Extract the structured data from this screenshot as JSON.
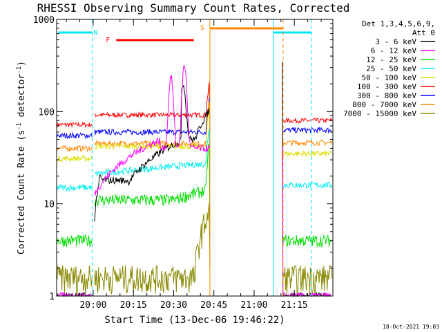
{
  "chart_data": {
    "type": "line",
    "title": "RHESSI Observing Summary Count Rates, Corrected",
    "xlabel": "Start Time (13-Dec-06 19:46:22)",
    "ylabel_main": "Corrected Count Rate (s",
    "ylabel_sup1": "-1",
    "ylabel_mid": " detector",
    "ylabel_sup2": "-1",
    "ylabel_end": ")",
    "footer": "18-Oct-2021 19:03",
    "y_scale": "log",
    "ylim": [
      1,
      1000
    ],
    "x_ticks": [
      "20:00",
      "20:15",
      "20:30",
      "20:45",
      "21:00",
      "21:15"
    ],
    "y_ticks": [
      "1",
      "10",
      "100",
      "1000"
    ],
    "legend_header": [
      "Det 1,3,4,5,6,9,",
      "Att 0"
    ],
    "flags": [
      {
        "label": "N",
        "color": "#00e5ee"
      },
      {
        "label": "F",
        "color": "#ff0000"
      },
      {
        "label": "S",
        "color": "#ff8800"
      }
    ],
    "series": [
      {
        "name": "3 - 6 keV",
        "color": "#000000"
      },
      {
        "name": "6 - 12 keV",
        "color": "#ff00ff"
      },
      {
        "name": "12 - 25 keV",
        "color": "#00dd00"
      },
      {
        "name": "25 - 50 keV",
        "color": "#00eeee"
      },
      {
        "name": "50 - 100 keV",
        "color": "#dddd00"
      },
      {
        "name": "100 - 300 keV",
        "color": "#ff0000"
      },
      {
        "name": "300 - 800 keV",
        "color": "#0000ff"
      },
      {
        "name": "800 - 7000 keV",
        "color": "#ff8800"
      },
      {
        "name": "7000 - 15000 keV",
        "color": "#888800"
      }
    ]
  }
}
